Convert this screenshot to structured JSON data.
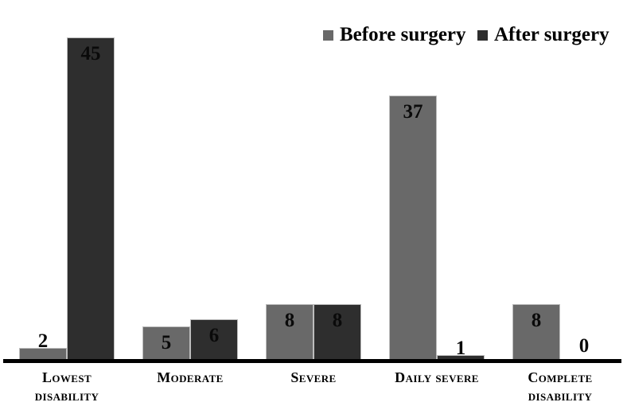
{
  "chart_data": {
    "type": "bar",
    "title": "",
    "xlabel": "",
    "ylabel": "",
    "categories": [
      "Lowest disability",
      "Moderate",
      "Severe",
      "Daily severe",
      "Complete disability"
    ],
    "category_lines": [
      [
        "Lowest",
        "disability"
      ],
      [
        "Moderate"
      ],
      [
        "Severe"
      ],
      [
        "Daily severe"
      ],
      [
        "Complete",
        "disability"
      ]
    ],
    "series": [
      {
        "name": "Before surgery",
        "color": "#696969",
        "values": [
          2,
          5,
          8,
          37,
          8
        ]
      },
      {
        "name": "After surgery",
        "color": "#2e2e2e",
        "values": [
          45,
          6,
          8,
          1,
          0
        ]
      }
    ],
    "ylim": [
      0,
      46
    ],
    "grid": false,
    "y_axis_shown": false,
    "legend_position": "top-right",
    "value_labels_shown": true,
    "colors": {
      "axis": "#000000",
      "bar_border": "#bdbdbd",
      "label_text": "#000000",
      "background": "#ffffff"
    }
  }
}
